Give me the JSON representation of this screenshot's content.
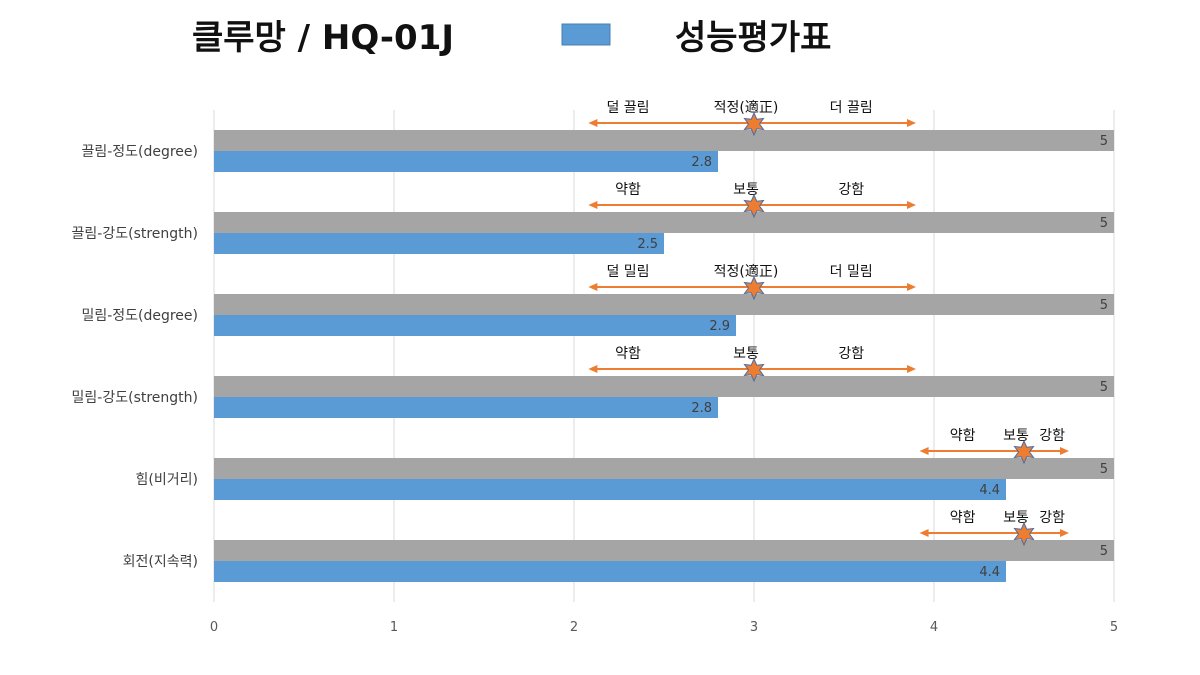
{
  "header": {
    "title": "클루망 / HQ-01J",
    "legend_label": "성능평가표"
  },
  "chart_data": {
    "type": "bar",
    "orientation": "horizontal",
    "categories": [
      "끌림-정도(degree)",
      "끌림-강도(strength)",
      "밀림-정도(degree)",
      "밀림-강도(strength)",
      "힘(비거리)",
      "회전(지속력)"
    ],
    "series": [
      {
        "values": [
          5,
          5,
          5,
          5,
          5,
          5
        ],
        "color": "#A5A5A5"
      },
      {
        "name": "성능평가표",
        "values": [
          2.8,
          2.5,
          2.9,
          2.8,
          4.4,
          4.4
        ],
        "color": "#5B9BD5"
      }
    ],
    "xlim": [
      0,
      5
    ],
    "xticks": [
      0,
      1,
      2,
      3,
      4,
      5
    ],
    "grid": true,
    "legend": "top",
    "annotations": [
      {
        "left": "덜 끌림",
        "mid": "적정(適正)",
        "right": "더 끌림",
        "marker": 3.0,
        "range": [
          2.08,
          3.9
        ]
      },
      {
        "left": "약함",
        "mid": "보통",
        "right": "강함",
        "marker": 3.0,
        "range": [
          2.08,
          3.9
        ]
      },
      {
        "left": "덜 밀림",
        "mid": "적정(適正)",
        "right": "더 밀림",
        "marker": 3.0,
        "range": [
          2.08,
          3.9
        ]
      },
      {
        "left": "약함",
        "mid": "보통",
        "right": "강함",
        "marker": 3.0,
        "range": [
          2.08,
          3.9
        ]
      },
      {
        "left": "약함",
        "mid": "보통",
        "right": "강함",
        "marker": 4.5,
        "range": [
          3.92,
          4.75
        ]
      },
      {
        "left": "약함",
        "mid": "보통",
        "right": "강함",
        "marker": 4.5,
        "range": [
          3.92,
          4.75
        ]
      }
    ],
    "marker_color": "#ED7D31",
    "arrow_color": "#ED7D31"
  }
}
